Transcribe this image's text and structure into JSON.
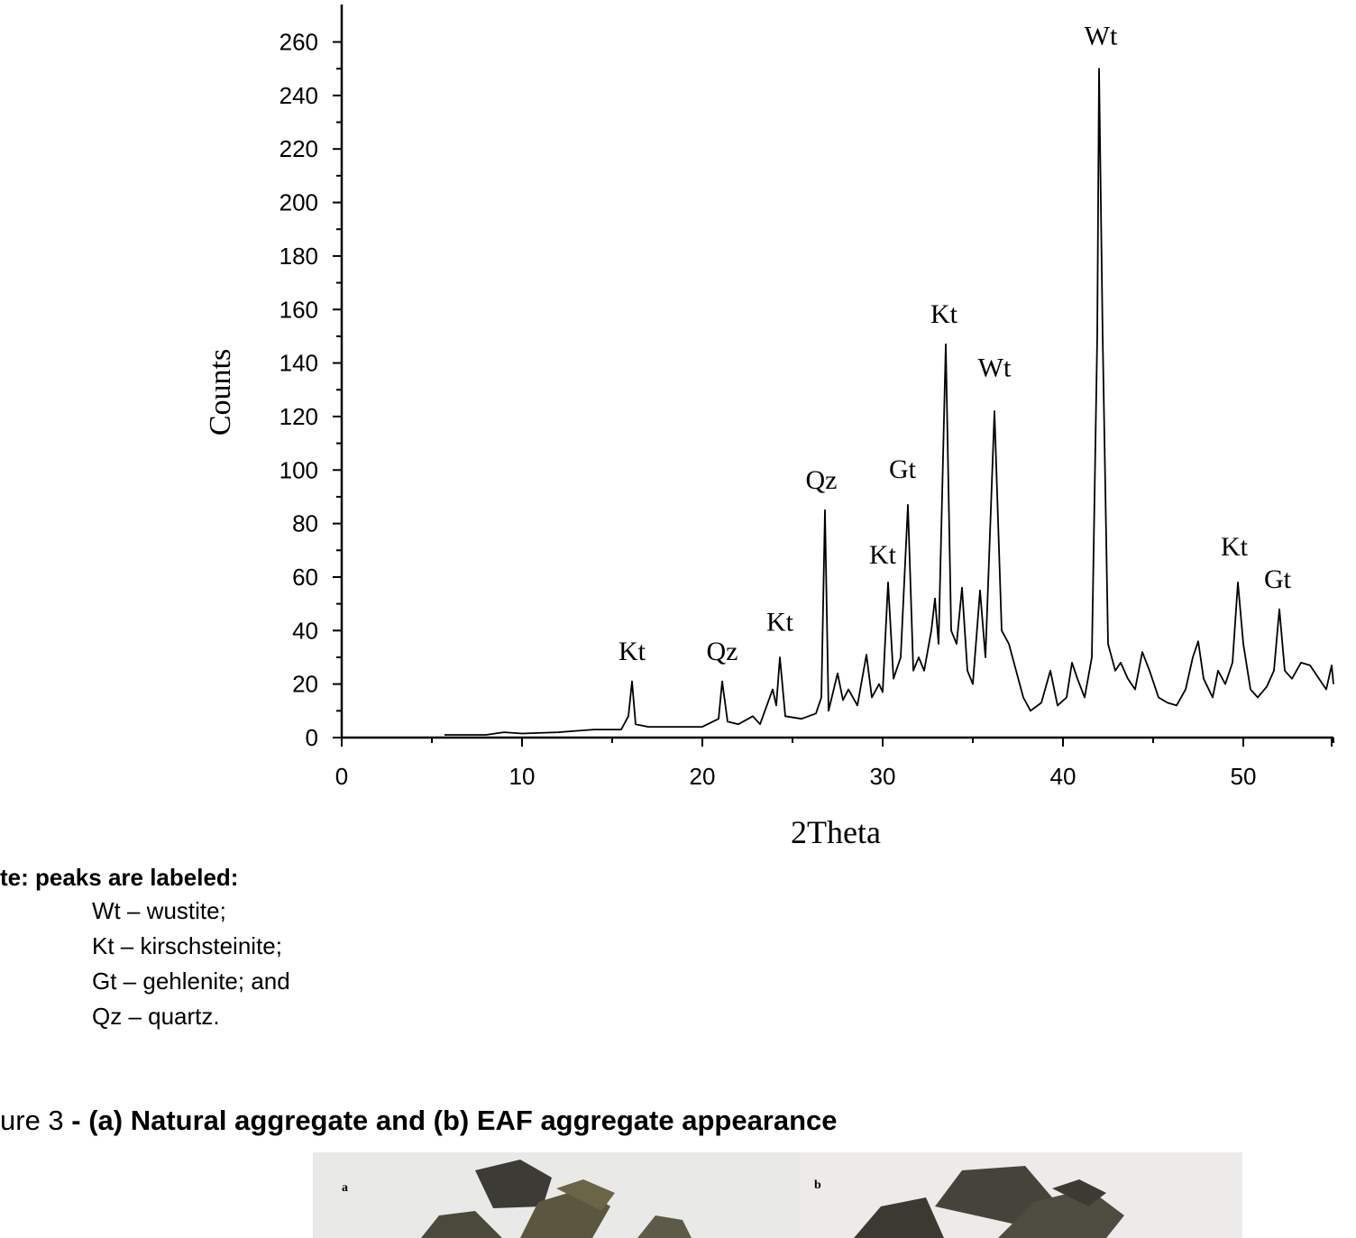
{
  "chart_data": {
    "type": "line",
    "x_label": "2Theta",
    "y_label": "Counts",
    "color": "#000000",
    "xlim": [
      0,
      55
    ],
    "ylim": [
      0,
      274
    ],
    "xticks": [
      0,
      10,
      20,
      30,
      40,
      50
    ],
    "yticks": [
      0,
      20,
      40,
      60,
      80,
      100,
      120,
      140,
      160,
      180,
      200,
      220,
      240,
      260
    ],
    "x": [
      5.7,
      8,
      9,
      10,
      12,
      14,
      15.5,
      15.9,
      16.1,
      16.3,
      17,
      18,
      19,
      20,
      20.9,
      21.1,
      21.4,
      22,
      22.8,
      23.2,
      23.9,
      24.1,
      24.3,
      24.6,
      25.5,
      26.3,
      26.6,
      26.8,
      27.0,
      27.5,
      27.8,
      28.1,
      28.6,
      29.1,
      29.4,
      29.8,
      30.0,
      30.3,
      30.6,
      31.0,
      31.4,
      31.7,
      32.0,
      32.3,
      32.7,
      32.9,
      33.1,
      33.5,
      33.8,
      34.1,
      34.4,
      34.7,
      35.0,
      35.4,
      35.7,
      36.2,
      36.6,
      37.0,
      37.4,
      37.8,
      38.2,
      38.8,
      39.3,
      39.7,
      40.2,
      40.5,
      40.8,
      41.2,
      41.6,
      41.9,
      42.0,
      42.2,
      42.5,
      42.9,
      43.2,
      43.6,
      44.0,
      44.4,
      44.8,
      45.3,
      45.8,
      46.3,
      46.8,
      47.2,
      47.5,
      47.8,
      48.3,
      48.6,
      49.0,
      49.4,
      49.7,
      50.0,
      50.4,
      50.8,
      51.3,
      51.7,
      52.0,
      52.3,
      52.7,
      53.2,
      53.7,
      54.2,
      54.6,
      54.9,
      55
    ],
    "values": [
      1,
      1,
      2,
      1.5,
      2,
      3,
      3,
      8,
      21,
      5,
      4,
      4,
      4,
      4,
      7,
      21,
      6,
      5,
      8,
      5,
      18,
      12,
      30,
      8,
      7,
      9,
      15,
      85,
      10,
      24,
      14,
      18,
      12,
      31,
      15,
      20,
      17,
      58,
      22,
      30,
      87,
      25,
      30,
      25,
      40,
      52,
      35,
      147,
      40,
      35,
      56,
      25,
      20,
      55,
      30,
      122,
      40,
      35,
      25,
      15,
      10,
      13,
      25,
      12,
      15,
      28,
      22,
      15,
      30,
      150,
      250,
      150,
      35,
      25,
      28,
      22,
      18,
      32,
      25,
      15,
      13,
      12,
      18,
      30,
      36,
      22,
      15,
      25,
      20,
      28,
      58,
      35,
      18,
      15,
      19,
      25,
      48,
      25,
      22,
      28,
      27,
      22,
      18,
      27,
      20
    ],
    "annotations": [
      {
        "text": "Kt",
        "x": 16.1,
        "y": 29
      },
      {
        "text": "Qz",
        "x": 21.1,
        "y": 29
      },
      {
        "text": "Kt",
        "x": 24.3,
        "y": 40
      },
      {
        "text": "Qz",
        "x": 26.6,
        "y": 93
      },
      {
        "text": "Kt",
        "x": 30.0,
        "y": 65
      },
      {
        "text": "Gt",
        "x": 31.1,
        "y": 97
      },
      {
        "text": "Kt",
        "x": 33.4,
        "y": 155
      },
      {
        "text": "Wt",
        "x": 36.2,
        "y": 135
      },
      {
        "text": "Wt",
        "x": 42.1,
        "y": 259
      },
      {
        "text": "Kt",
        "x": 49.5,
        "y": 68
      },
      {
        "text": "Gt",
        "x": 51.9,
        "y": 56
      }
    ]
  },
  "note": {
    "heading": "te: peaks are labeled:",
    "items": [
      "Wt – wustite;",
      "Kt – kirschsteinite;",
      "Gt – gehlenite; and",
      "Qz – quartz."
    ]
  },
  "caption": {
    "prefix": "ure 3",
    "text": " - (a) Natural aggregate and (b) EAF aggregate appearance"
  },
  "photo": {
    "labels": [
      "a",
      "b"
    ]
  }
}
